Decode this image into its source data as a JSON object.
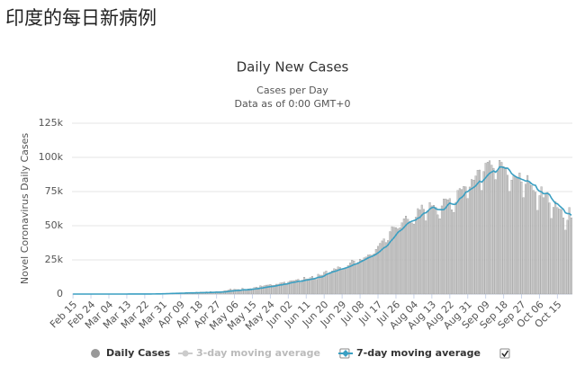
{
  "page_title": "印度的每日新病例",
  "chart_data": {
    "type": "bar-line",
    "title": "Daily New Cases",
    "subtitle": [
      "Cases per Day",
      "Data as of 0:00 GMT+0"
    ],
    "y_label": "Novel Coronavirus Daily Cases",
    "ylim": [
      0,
      125000
    ],
    "yticks": [
      0,
      {
        "value": 25000,
        "label": "25k"
      },
      {
        "value": 50000,
        "label": "50k"
      },
      {
        "value": 75000,
        "label": "75k"
      },
      {
        "value": 100000,
        "label": "100k"
      },
      {
        "value": 125000,
        "label": "125k"
      }
    ],
    "categories": [
      "Feb 15",
      null,
      null,
      null,
      null,
      null,
      null,
      null,
      null,
      "Feb 24",
      null,
      null,
      null,
      null,
      null,
      null,
      null,
      null,
      "Mar 04",
      null,
      null,
      null,
      null,
      null,
      null,
      null,
      null,
      "Mar 13",
      null,
      null,
      null,
      null,
      null,
      null,
      null,
      null,
      "Mar 22",
      null,
      null,
      null,
      null,
      null,
      null,
      null,
      null,
      "Mar 31",
      null,
      null,
      null,
      null,
      null,
      null,
      null,
      null,
      "Apr 09",
      null,
      null,
      null,
      null,
      null,
      null,
      null,
      null,
      "Apr 18",
      null,
      null,
      null,
      null,
      null,
      null,
      null,
      null,
      "Apr 27",
      null,
      null,
      null,
      null,
      null,
      null,
      null,
      null,
      "May 06",
      null,
      null,
      null,
      null,
      null,
      null,
      null,
      null,
      "May 15",
      null,
      null,
      null,
      null,
      null,
      null,
      null,
      null,
      "May 24",
      null,
      null,
      null,
      null,
      null,
      null,
      null,
      null,
      "Jun 02",
      null,
      null,
      null,
      null,
      null,
      null,
      null,
      null,
      "Jun 11",
      null,
      null,
      null,
      null,
      null,
      null,
      null,
      null,
      "Jun 20",
      null,
      null,
      null,
      null,
      null,
      null,
      null,
      null,
      "Jun 29",
      null,
      null,
      null,
      null,
      null,
      null,
      null,
      null,
      "Jul 08",
      null,
      null,
      null,
      null,
      null,
      null,
      null,
      null,
      "Jul 17",
      null,
      null,
      null,
      null,
      null,
      null,
      null,
      null,
      "Jul 26",
      null,
      null,
      null,
      null,
      null,
      null,
      null,
      null,
      "Aug 04",
      null,
      null,
      null,
      null,
      null,
      null,
      null,
      null,
      "Aug 13",
      null,
      null,
      null,
      null,
      null,
      null,
      null,
      null,
      "Aug 22",
      null,
      null,
      null,
      null,
      null,
      null,
      null,
      null,
      "Aug 31",
      null,
      null,
      null,
      null,
      null,
      null,
      null,
      null,
      "Sep 09",
      null,
      null,
      null,
      null,
      null,
      null,
      null,
      null,
      "Sep 18",
      null,
      null,
      null,
      null,
      null,
      null,
      null,
      null,
      "Sep 27",
      null,
      null,
      null,
      null,
      null,
      null,
      null,
      null,
      "Oct 06",
      null,
      null,
      null,
      null,
      null,
      null,
      null,
      null,
      "Oct 15",
      null,
      null,
      null,
      null,
      null,
      null,
      null
    ],
    "series": [
      {
        "name": "Daily Cases",
        "kind": "bar",
        "color": "#cccccc",
        "edge": "#8a8a8a",
        "values": [
          0,
          0,
          0,
          0,
          0,
          0,
          0,
          0,
          0,
          0,
          0,
          0,
          0,
          0,
          0,
          0,
          2,
          1,
          22,
          2,
          1,
          3,
          5,
          9,
          15,
          8,
          10,
          11,
          10,
          23,
          17,
          24,
          27,
          58,
          78,
          69,
          94,
          74,
          86,
          73,
          153,
          136,
          120,
          187,
          309,
          424,
          486,
          560,
          579,
          609,
          484,
          573,
          565,
          813,
          871,
          854,
          758,
          1243,
          1031,
          886,
          1061,
          922,
          1370,
          1053,
          1486,
          1383,
          1490,
          1667,
          1408,
          1835,
          1607,
          1568,
          1902,
          1705,
          1801,
          1993,
          2396,
          2564,
          2952,
          3656,
          2971,
          3602,
          3344,
          3339,
          3175,
          4311,
          3592,
          3562,
          3726,
          3991,
          3808,
          4794,
          5049,
          4630,
          6147,
          5553,
          6198,
          6568,
          6629,
          7111,
          6414,
          6535,
          7246,
          7254,
          8138,
          8364,
          8789,
          7723,
          8812,
          9689,
          9849,
          9887,
          10438,
          10864,
          8442,
          10218,
          12375,
          11128,
          11157,
          12023,
          12992,
          11502,
          10667,
          14516,
          13839,
          13826,
          15915,
          16922,
          14821,
          15968,
          16922,
          18552,
          18183,
          19906,
          19459,
          18339,
          18641,
          19428,
          20903,
          22771,
          24850,
          24248,
          22252,
          23135,
          25571,
          24879,
          26506,
          27114,
          28637,
          28701,
          28498,
          29429,
          32695,
          34956,
          37148,
          38902,
          40425,
          37740,
          39170,
          45720,
          49310,
          48916,
          48661,
          47703,
          48513,
          52123,
          55079,
          57118,
          54736,
          52972,
          52050,
          51282,
          56282,
          62538,
          61537,
          65156,
          62064,
          53601,
          60963,
          66999,
          64553,
          65002,
          63490,
          57981,
          55079,
          64531,
          69652,
          69672,
          68898,
          69878,
          61749,
          59696,
          67151,
          75760,
          77266,
          76472,
          78761,
          78512,
          69921,
          78357,
          83883,
          83341,
          86432,
          90633,
          90802,
          75809,
          89706,
          95735,
          96551,
          97570,
          94372,
          92071,
          83809,
          90123,
          97894,
          96424,
          93337,
          92605,
          86961,
          75083,
          83347,
          86508,
          86052,
          85362,
          88600,
          82170,
          70589,
          80472,
          86821,
          81484,
          79476,
          75829,
          74442,
          61267,
          72049,
          78524,
          70496,
          73272,
          74383,
          66732,
          55342,
          63509,
          67708,
          63371,
          62212,
          61871,
          55722,
          46790,
          54044,
          63371,
          55839
        ]
      },
      {
        "name": "7-day moving average",
        "kind": "line",
        "color": "#3a9fc2",
        "checked": true,
        "values": [
          0,
          0,
          0,
          0,
          0,
          0,
          0,
          0,
          0,
          0,
          0,
          0,
          0,
          0,
          0,
          0,
          0,
          0,
          4,
          4,
          4,
          4,
          5,
          6,
          8,
          7,
          8,
          9,
          10,
          12,
          13,
          15,
          17,
          24,
          33,
          40,
          50,
          56,
          64,
          69,
          78,
          87,
          95,
          113,
          138,
          176,
          222,
          276,
          336,
          407,
          447,
          489,
          522,
          569,
          625,
          665,
          690,
          790,
          813,
          836,
          866,
          890,
          938,
          936,
          990,
          1006,
          1032,
          1116,
          1116,
          1177,
          1211,
          1277,
          1335,
          1385,
          1448,
          1484,
          1592,
          1712,
          1927,
          2149,
          2264,
          2411,
          2547,
          2680,
          2717,
          3031,
          3085,
          3097,
          3159,
          3226,
          3593,
          3618,
          3864,
          3980,
          4305,
          4390,
          4734,
          4978,
          5233,
          5471,
          5555,
          5748,
          6048,
          6320,
          6676,
          6806,
          7192,
          7367,
          7608,
          8113,
          8373,
          8640,
          8868,
          9303,
          9331,
          9481,
          9893,
          10210,
          10416,
          10704,
          10983,
          11216,
          11656,
          12240,
          12347,
          12583,
          13186,
          14226,
          14869,
          15365,
          16063,
          16489,
          16853,
          17463,
          18016,
          18338,
          18713,
          19176,
          19687,
          20183,
          20879,
          21599,
          22043,
          22555,
          23423,
          24085,
          24816,
          25577,
          26397,
          27021,
          27592,
          28280,
          29097,
          30128,
          31217,
          32597,
          33849,
          34585,
          35867,
          38036,
          39638,
          41219,
          43185,
          45172,
          46286,
          47206,
          48718,
          50360,
          51817,
          52625,
          53313,
          53780,
          54237,
          55560,
          56015,
          57804,
          59132,
          59467,
          60679,
          62267,
          63138,
          63590,
          62394,
          61893,
          61819,
          61733,
          61784,
          63146,
          65200,
          66556,
          65964,
          65580,
          65783,
          67655,
          69858,
          70728,
          72144,
          74554,
          74945,
          76184,
          77130,
          78035,
          79187,
          80950,
          82611,
          81891,
          83441,
          85132,
          86869,
          88434,
          89259,
          90108,
          89175,
          90678,
          92965,
          92998,
          92569,
          91956,
          92150,
          90558,
          88172,
          87021,
          85970,
          85210,
          84688,
          84003,
          83490,
          82718,
          82867,
          82104,
          80743,
          79815,
          79541,
          76557,
          75261,
          74800,
          73416,
          73547,
          73681,
          72830,
          70172,
          68153,
          66441,
          66057,
          64608,
          63235,
          62017,
          59434,
          58888,
          58850,
          57619
        ]
      }
    ],
    "hidden_series": [
      {
        "name": "3-day moving average",
        "color": "#cccccc",
        "checked": false
      }
    ],
    "grid": true
  }
}
